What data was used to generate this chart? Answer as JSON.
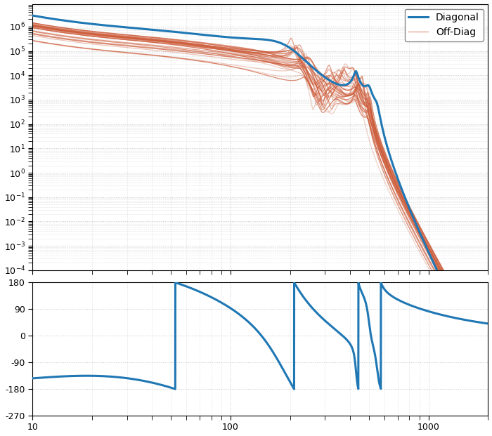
{
  "diag_color": "#1f77b4",
  "offdiag_color_base": "#cd5c3a",
  "diag_linewidth": 2.2,
  "offdiag_linewidth": 0.9,
  "legend_labels": [
    "Diagonal",
    "Off-Diag"
  ],
  "freq_min": 10,
  "freq_max": 2000,
  "background": "#ffffff",
  "grid_color": "#c8c8c8",
  "grid_linestyle": ":",
  "fig_width": 7.0,
  "fig_height": 6.21,
  "dpi": 100,
  "n_offdiag": 30,
  "seed": 7
}
